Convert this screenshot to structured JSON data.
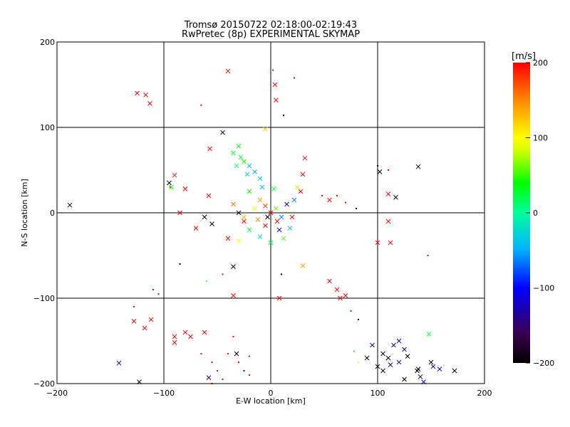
{
  "chart_data": {
    "type": "scatter",
    "title": "Tromsø 20150722 02:18:00-02:19:43",
    "subtitle": "RwPretec (8p) EXPERIMENTAL SKYMAP",
    "xlabel": "E-W location [km]",
    "ylabel": "N-S location [km]",
    "xlim": [
      -200,
      200
    ],
    "ylim": [
      -200,
      200
    ],
    "x_ticks": [
      -200,
      -100,
      0,
      100,
      200
    ],
    "y_ticks": [
      -200,
      -100,
      0,
      100,
      200
    ],
    "grid": true,
    "colorbar": {
      "label": "[m/s]",
      "range": [
        -200,
        200
      ],
      "ticks": [
        200,
        100,
        0,
        -100,
        -200
      ],
      "colors": [
        "#000000",
        "#3a0050",
        "#0000ff",
        "#00b4ff",
        "#00ff9b",
        "#00ff00",
        "#c8ff00",
        "#ffff00",
        "#ff8c00",
        "#ff0000"
      ]
    },
    "markers": [
      "x",
      "dot"
    ],
    "points": [
      {
        "x": -125,
        "y": 140,
        "v": 200,
        "m": "x"
      },
      {
        "x": -117,
        "y": 138,
        "v": 200,
        "m": "x"
      },
      {
        "x": -113,
        "y": 128,
        "v": 200,
        "m": "x"
      },
      {
        "x": -40,
        "y": 166,
        "v": 200,
        "m": "x"
      },
      {
        "x": 2,
        "y": 167,
        "v": 200,
        "m": "dot"
      },
      {
        "x": 4,
        "y": 150,
        "v": 200,
        "m": "x"
      },
      {
        "x": 5,
        "y": 132,
        "v": 200,
        "m": "x"
      },
      {
        "x": 22,
        "y": 158,
        "v": 200,
        "m": "dot"
      },
      {
        "x": -65,
        "y": 126,
        "v": 200,
        "m": "dot"
      },
      {
        "x": 12,
        "y": 114,
        "v": -200,
        "m": "dot"
      },
      {
        "x": -5,
        "y": 98,
        "v": 120,
        "m": "x"
      },
      {
        "x": -45,
        "y": 94,
        "v": -200,
        "m": "x"
      },
      {
        "x": -57,
        "y": 75,
        "v": 200,
        "m": "x"
      },
      {
        "x": -30,
        "y": 78,
        "v": 40,
        "m": "x"
      },
      {
        "x": -35,
        "y": 70,
        "v": 30,
        "m": "x"
      },
      {
        "x": -28,
        "y": 65,
        "v": 20,
        "m": "x"
      },
      {
        "x": -25,
        "y": 60,
        "v": 40,
        "m": "x"
      },
      {
        "x": -32,
        "y": 55,
        "v": 10,
        "m": "x"
      },
      {
        "x": -20,
        "y": 55,
        "v": -40,
        "m": "x"
      },
      {
        "x": -15,
        "y": 48,
        "v": -50,
        "m": "x"
      },
      {
        "x": -10,
        "y": 40,
        "v": -40,
        "m": "x"
      },
      {
        "x": -22,
        "y": 45,
        "v": -30,
        "m": "x"
      },
      {
        "x": 32,
        "y": 64,
        "v": 200,
        "m": "x"
      },
      {
        "x": -90,
        "y": 44,
        "v": 200,
        "m": "x"
      },
      {
        "x": -94,
        "y": 30,
        "v": 200,
        "m": "dot"
      },
      {
        "x": -188,
        "y": 9,
        "v": -200,
        "m": "x"
      },
      {
        "x": -95,
        "y": 35,
        "v": -200,
        "m": "x"
      },
      {
        "x": -93,
        "y": 30,
        "v": 40,
        "m": "x"
      },
      {
        "x": -80,
        "y": 28,
        "v": 200,
        "m": "x"
      },
      {
        "x": -58,
        "y": 20,
        "v": 200,
        "m": "x"
      },
      {
        "x": -85,
        "y": 0,
        "v": 200,
        "m": "x"
      },
      {
        "x": -62,
        "y": -5,
        "v": -200,
        "m": "x"
      },
      {
        "x": -55,
        "y": -13,
        "v": -200,
        "m": "x"
      },
      {
        "x": -70,
        "y": -18,
        "v": 200,
        "m": "x"
      },
      {
        "x": -35,
        "y": 10,
        "v": 160,
        "m": "x"
      },
      {
        "x": -30,
        "y": 0,
        "v": -200,
        "m": "x"
      },
      {
        "x": -25,
        "y": -10,
        "v": 200,
        "m": "x"
      },
      {
        "x": -40,
        "y": -30,
        "v": 200,
        "m": "x"
      },
      {
        "x": -30,
        "y": -33,
        "v": 100,
        "m": "x"
      },
      {
        "x": -20,
        "y": -20,
        "v": 20,
        "m": "x"
      },
      {
        "x": -15,
        "y": 5,
        "v": 90,
        "m": "x"
      },
      {
        "x": -10,
        "y": 15,
        "v": 140,
        "m": "x"
      },
      {
        "x": -5,
        "y": 8,
        "v": 180,
        "m": "x"
      },
      {
        "x": 0,
        "y": 0,
        "v": 200,
        "m": "x"
      },
      {
        "x": 5,
        "y": 5,
        "v": 60,
        "m": "x"
      },
      {
        "x": 10,
        "y": -5,
        "v": -60,
        "m": "x"
      },
      {
        "x": 15,
        "y": 10,
        "v": -100,
        "m": "x"
      },
      {
        "x": -5,
        "y": -15,
        "v": 200,
        "m": "x"
      },
      {
        "x": -12,
        "y": -8,
        "v": 150,
        "m": "x"
      },
      {
        "x": 8,
        "y": -20,
        "v": -100,
        "m": "x"
      },
      {
        "x": 18,
        "y": -18,
        "v": -40,
        "m": "x"
      },
      {
        "x": 22,
        "y": 15,
        "v": -60,
        "m": "x"
      },
      {
        "x": 25,
        "y": 30,
        "v": 80,
        "m": "x"
      },
      {
        "x": 30,
        "y": 45,
        "v": 200,
        "m": "x"
      },
      {
        "x": 28,
        "y": 25,
        "v": 200,
        "m": "x"
      },
      {
        "x": -8,
        "y": 30,
        "v": -50,
        "m": "x"
      },
      {
        "x": -20,
        "y": 25,
        "v": 40,
        "m": "x"
      },
      {
        "x": 3,
        "y": 28,
        "v": 20,
        "m": "x"
      },
      {
        "x": -3,
        "y": -5,
        "v": -200,
        "m": "x"
      },
      {
        "x": 6,
        "y": -10,
        "v": 200,
        "m": "x"
      },
      {
        "x": -25,
        "y": -5,
        "v": 130,
        "m": "x"
      },
      {
        "x": 20,
        "y": -5,
        "v": 200,
        "m": "x"
      },
      {
        "x": 12,
        "y": -30,
        "v": 60,
        "m": "x"
      },
      {
        "x": 0,
        "y": -35,
        "v": 30,
        "m": "x"
      },
      {
        "x": -10,
        "y": -28,
        "v": -20,
        "m": "x"
      },
      {
        "x": -35,
        "y": -63,
        "v": -200,
        "m": "x"
      },
      {
        "x": -45,
        "y": -72,
        "v": 200,
        "m": "dot"
      },
      {
        "x": -85,
        "y": -60,
        "v": -200,
        "m": "dot"
      },
      {
        "x": -60,
        "y": -80,
        "v": 60,
        "m": "dot"
      },
      {
        "x": 10,
        "y": -72,
        "v": -200,
        "m": "dot"
      },
      {
        "x": 30,
        "y": -62,
        "v": 140,
        "m": "x"
      },
      {
        "x": -35,
        "y": -97,
        "v": 200,
        "m": "x"
      },
      {
        "x": 8,
        "y": -100,
        "v": 200,
        "m": "x"
      },
      {
        "x": 48,
        "y": 20,
        "v": 200,
        "m": "dot"
      },
      {
        "x": 55,
        "y": 15,
        "v": 200,
        "m": "x"
      },
      {
        "x": 62,
        "y": 20,
        "v": 200,
        "m": "dot"
      },
      {
        "x": 70,
        "y": 12,
        "v": 200,
        "m": "dot"
      },
      {
        "x": 80,
        "y": 5,
        "v": -200,
        "m": "dot"
      },
      {
        "x": 100,
        "y": 55,
        "v": -200,
        "m": "dot"
      },
      {
        "x": 102,
        "y": 48,
        "v": -200,
        "m": "x"
      },
      {
        "x": 110,
        "y": 50,
        "v": 200,
        "m": "dot"
      },
      {
        "x": 138,
        "y": 54,
        "v": -200,
        "m": "x"
      },
      {
        "x": 110,
        "y": 22,
        "v": 200,
        "m": "x"
      },
      {
        "x": 117,
        "y": 18,
        "v": -200,
        "m": "x"
      },
      {
        "x": 110,
        "y": -10,
        "v": 200,
        "m": "x"
      },
      {
        "x": 112,
        "y": -35,
        "v": 200,
        "m": "x"
      },
      {
        "x": 100,
        "y": -35,
        "v": 200,
        "m": "x"
      },
      {
        "x": 147,
        "y": -50,
        "v": 200,
        "m": "dot"
      },
      {
        "x": 55,
        "y": -80,
        "v": 200,
        "m": "x"
      },
      {
        "x": 62,
        "y": -90,
        "v": 200,
        "m": "x"
      },
      {
        "x": 65,
        "y": -100,
        "v": 200,
        "m": "x"
      },
      {
        "x": 70,
        "y": -97,
        "v": 200,
        "m": "x"
      },
      {
        "x": 75,
        "y": -115,
        "v": 200,
        "m": "dot"
      },
      {
        "x": 82,
        "y": -125,
        "v": -200,
        "m": "dot"
      },
      {
        "x": 95,
        "y": -155,
        "v": -150,
        "m": "x"
      },
      {
        "x": 90,
        "y": -170,
        "v": -200,
        "m": "x"
      },
      {
        "x": 100,
        "y": -180,
        "v": -200,
        "m": "x"
      },
      {
        "x": 105,
        "y": -165,
        "v": -200,
        "m": "x"
      },
      {
        "x": 110,
        "y": -170,
        "v": -200,
        "m": "x"
      },
      {
        "x": 115,
        "y": -155,
        "v": -150,
        "m": "x"
      },
      {
        "x": 120,
        "y": -150,
        "v": -120,
        "m": "x"
      },
      {
        "x": 125,
        "y": -160,
        "v": -120,
        "m": "x"
      },
      {
        "x": 128,
        "y": -168,
        "v": -200,
        "m": "x"
      },
      {
        "x": 120,
        "y": -175,
        "v": -150,
        "m": "x"
      },
      {
        "x": 112,
        "y": -178,
        "v": -120,
        "m": "x"
      },
      {
        "x": 105,
        "y": -185,
        "v": -200,
        "m": "x"
      },
      {
        "x": 125,
        "y": -195,
        "v": -200,
        "m": "x"
      },
      {
        "x": 137,
        "y": -185,
        "v": -200,
        "m": "x"
      },
      {
        "x": 140,
        "y": -192,
        "v": -150,
        "m": "x"
      },
      {
        "x": 143,
        "y": -198,
        "v": -120,
        "m": "x"
      },
      {
        "x": 150,
        "y": -175,
        "v": -200,
        "m": "x"
      },
      {
        "x": 152,
        "y": -180,
        "v": -150,
        "m": "x"
      },
      {
        "x": 158,
        "y": -183,
        "v": -120,
        "m": "x"
      },
      {
        "x": 172,
        "y": -185,
        "v": -200,
        "m": "x"
      },
      {
        "x": 148,
        "y": -142,
        "v": 20,
        "m": "x"
      },
      {
        "x": 138,
        "y": -183,
        "v": -200,
        "m": "x"
      },
      {
        "x": 82,
        "y": -175,
        "v": 90,
        "m": "dot"
      },
      {
        "x": 78,
        "y": -162,
        "v": 40,
        "m": "dot"
      },
      {
        "x": -110,
        "y": -90,
        "v": 200,
        "m": "dot"
      },
      {
        "x": -105,
        "y": -95,
        "v": 200,
        "m": "dot"
      },
      {
        "x": -112,
        "y": -125,
        "v": 200,
        "m": "x"
      },
      {
        "x": -118,
        "y": -135,
        "v": 200,
        "m": "x"
      },
      {
        "x": -128,
        "y": -127,
        "v": 200,
        "m": "x"
      },
      {
        "x": -128,
        "y": -110,
        "v": 200,
        "m": "dot"
      },
      {
        "x": -90,
        "y": -145,
        "v": 200,
        "m": "x"
      },
      {
        "x": -90,
        "y": -152,
        "v": 200,
        "m": "x"
      },
      {
        "x": -80,
        "y": -140,
        "v": 200,
        "m": "x"
      },
      {
        "x": -75,
        "y": -145,
        "v": 200,
        "m": "x"
      },
      {
        "x": -62,
        "y": -140,
        "v": 200,
        "m": "x"
      },
      {
        "x": -65,
        "y": -165,
        "v": 200,
        "m": "dot"
      },
      {
        "x": -55,
        "y": -175,
        "v": 200,
        "m": "dot"
      },
      {
        "x": -50,
        "y": -185,
        "v": 200,
        "m": "dot"
      },
      {
        "x": -45,
        "y": -195,
        "v": 200,
        "m": "dot"
      },
      {
        "x": -55,
        "y": -200,
        "v": 200,
        "m": "dot"
      },
      {
        "x": -40,
        "y": -165,
        "v": 200,
        "m": "dot"
      },
      {
        "x": -35,
        "y": -145,
        "v": 200,
        "m": "dot"
      },
      {
        "x": -30,
        "y": -175,
        "v": 200,
        "m": "dot"
      },
      {
        "x": -25,
        "y": -185,
        "v": 200,
        "m": "dot"
      },
      {
        "x": -20,
        "y": -190,
        "v": 200,
        "m": "dot"
      },
      {
        "x": -20,
        "y": -168,
        "v": 200,
        "m": "dot"
      },
      {
        "x": -32,
        "y": -165,
        "v": -200,
        "m": "x"
      },
      {
        "x": -142,
        "y": -176,
        "v": -120,
        "m": "x"
      },
      {
        "x": -123,
        "y": -198,
        "v": -200,
        "m": "x"
      },
      {
        "x": -58,
        "y": -193,
        "v": -150,
        "m": "x"
      },
      {
        "x": -25,
        "y": -185,
        "v": -100,
        "m": "dot"
      }
    ]
  }
}
